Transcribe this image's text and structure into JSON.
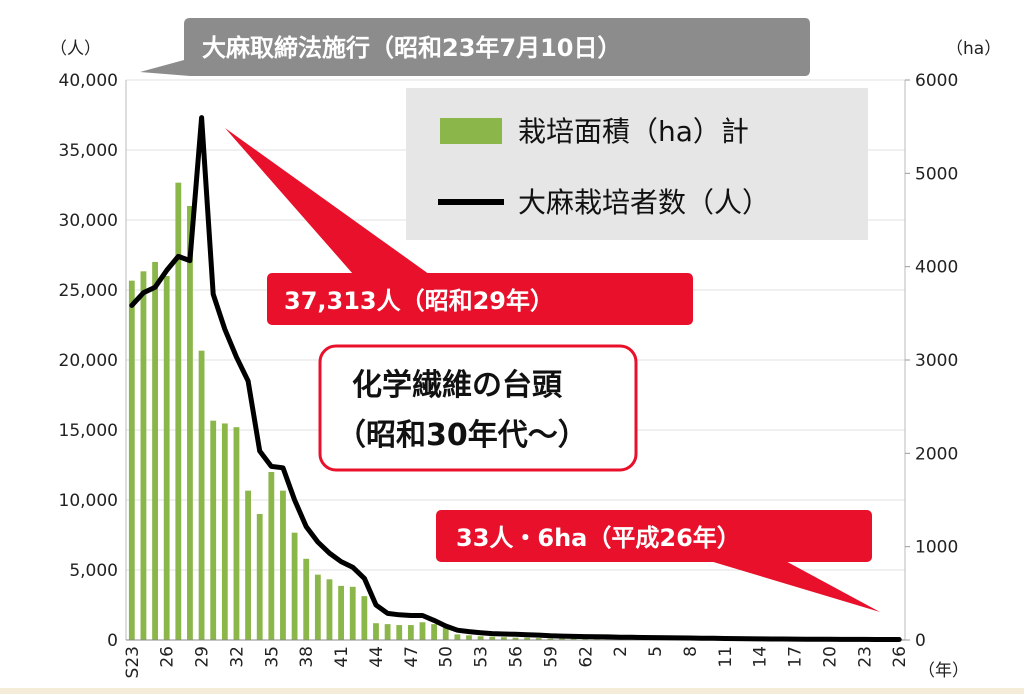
{
  "banner": "大麻取締法施行（昭和23年7月10日）",
  "callouts": {
    "peak": "37,313人（昭和29年）",
    "latest": "33人・6ha（平成26年）"
  },
  "note": {
    "line1": "化学繊維の台頭",
    "line2": "（昭和30年代～）"
  },
  "legend": {
    "bar": "栽培面積（ha）計",
    "line": "大麻栽培者数（人）"
  },
  "colors": {
    "bar": "#8bb64a",
    "line": "#000000",
    "callout": "#e8102a",
    "banner": "#8c8c8c",
    "legend_bg": "#e6e6e6"
  },
  "chart_data": {
    "type": "bar+line",
    "left_axis_unit": "（人）",
    "right_axis_unit": "（ha）",
    "x_axis_unit": "（年）",
    "y_left_lim": [
      0,
      40000
    ],
    "y_left_ticks": [
      "0",
      "5,000",
      "10,000",
      "15,000",
      "20,000",
      "25,000",
      "30,000",
      "35,000",
      "40,000"
    ],
    "y_right_lim": [
      0,
      6000
    ],
    "y_right_ticks": [
      "0",
      "1000",
      "2000",
      "3000",
      "4000",
      "5000",
      "6000"
    ],
    "x_tick_labels": [
      {
        "i": 0,
        "label": "S23"
      },
      {
        "i": 3,
        "label": "26"
      },
      {
        "i": 6,
        "label": "29"
      },
      {
        "i": 9,
        "label": "32"
      },
      {
        "i": 12,
        "label": "35"
      },
      {
        "i": 15,
        "label": "38"
      },
      {
        "i": 18,
        "label": "41"
      },
      {
        "i": 21,
        "label": "44"
      },
      {
        "i": 24,
        "label": "47"
      },
      {
        "i": 27,
        "label": "50"
      },
      {
        "i": 30,
        "label": "53"
      },
      {
        "i": 33,
        "label": "56"
      },
      {
        "i": 36,
        "label": "59"
      },
      {
        "i": 39,
        "label": "62"
      },
      {
        "i": 42,
        "label": "2"
      },
      {
        "i": 45,
        "label": "5"
      },
      {
        "i": 48,
        "label": "8"
      },
      {
        "i": 51,
        "label": "11"
      },
      {
        "i": 54,
        "label": "14"
      },
      {
        "i": 57,
        "label": "17"
      },
      {
        "i": 60,
        "label": "20"
      },
      {
        "i": 63,
        "label": "23"
      },
      {
        "i": 66,
        "label": "26"
      }
    ],
    "series": [
      {
        "name": "栽培面積（ha）計",
        "kind": "bar",
        "axis": "right",
        "values": [
          3850,
          3950,
          4050,
          3900,
          4900,
          4650,
          3100,
          2350,
          2320,
          2280,
          1600,
          1350,
          1800,
          1600,
          1150,
          870,
          700,
          650,
          580,
          570,
          470,
          180,
          170,
          160,
          160,
          190,
          170,
          130,
          60,
          50,
          40,
          35,
          30,
          25,
          25,
          20,
          15,
          15,
          15,
          12,
          12,
          12,
          12,
          12,
          10,
          10,
          10,
          10,
          10,
          8,
          8,
          8,
          8,
          8,
          8,
          8,
          8,
          8,
          8,
          6,
          6,
          6,
          6,
          6,
          6,
          6,
          6
        ]
      },
      {
        "name": "大麻栽培者数（人）",
        "kind": "line",
        "axis": "left",
        "values": [
          23900,
          24800,
          25200,
          26400,
          27400,
          27100,
          37313,
          24700,
          22200,
          20200,
          18500,
          13500,
          12400,
          12300,
          10000,
          8100,
          7000,
          6200,
          5600,
          5200,
          4400,
          2500,
          1900,
          1800,
          1750,
          1750,
          1400,
          1000,
          700,
          600,
          520,
          460,
          430,
          410,
          380,
          350,
          300,
          280,
          260,
          240,
          230,
          220,
          200,
          190,
          180,
          170,
          160,
          150,
          140,
          130,
          120,
          110,
          100,
          90,
          80,
          75,
          70,
          65,
          60,
          55,
          50,
          45,
          42,
          40,
          38,
          35,
          33
        ]
      }
    ]
  }
}
